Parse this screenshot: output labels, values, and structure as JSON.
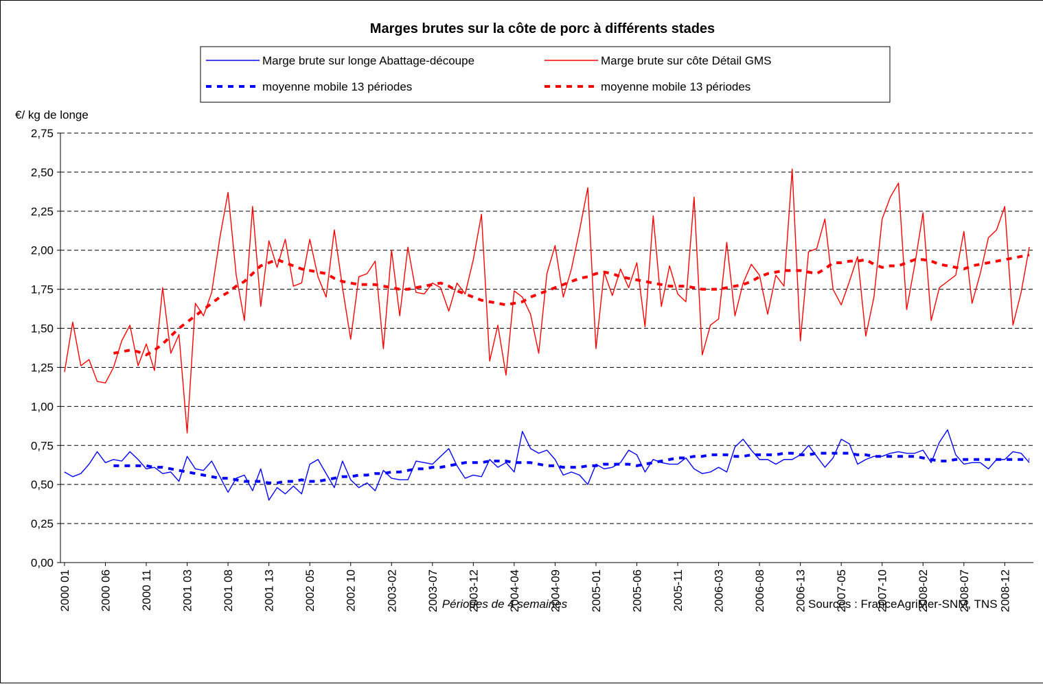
{
  "chart_data": {
    "type": "line",
    "title": "Marges brutes sur la côte de porc à différents stades",
    "y_label": "€/ kg de longe",
    "x_label": "Périodes de 4 semaines",
    "source": "Sources : FranceAgriMer-SNM, TNS",
    "grid": true,
    "ylim": [
      0,
      2.75
    ],
    "yticks": [
      {
        "value": 0,
        "label": "0,00"
      },
      {
        "value": 0.25,
        "label": "0,25"
      },
      {
        "value": 0.5,
        "label": "0,50"
      },
      {
        "value": 0.75,
        "label": "0,75"
      },
      {
        "value": 1,
        "label": "1,00"
      },
      {
        "value": 1.25,
        "label": "1,25"
      },
      {
        "value": 1.5,
        "label": "1,50"
      },
      {
        "value": 1.75,
        "label": "1,75"
      },
      {
        "value": 2,
        "label": "2,00"
      },
      {
        "value": 2.25,
        "label": "2,25"
      },
      {
        "value": 2.5,
        "label": "2,50"
      },
      {
        "value": 2.75,
        "label": "2,75"
      }
    ],
    "categories": [
      "2000 01",
      null,
      null,
      null,
      null,
      "2000 06",
      null,
      null,
      null,
      null,
      "2000 11",
      null,
      null,
      null,
      null,
      "2001 03",
      null,
      null,
      null,
      null,
      "2001 08",
      null,
      null,
      null,
      null,
      "2001 13",
      null,
      null,
      null,
      null,
      "2002 05",
      null,
      null,
      null,
      null,
      "2002 10",
      null,
      null,
      null,
      null,
      "2003-02",
      null,
      null,
      null,
      null,
      "2003-07",
      null,
      null,
      null,
      null,
      "2003-12",
      null,
      null,
      null,
      null,
      "2004-04",
      null,
      null,
      null,
      null,
      "2004-09",
      null,
      null,
      null,
      null,
      "2005-01",
      null,
      null,
      null,
      null,
      "2005-06",
      null,
      null,
      null,
      null,
      "2005-11",
      null,
      null,
      null,
      null,
      "2006-03",
      null,
      null,
      null,
      null,
      "2006-08",
      null,
      null,
      null,
      null,
      "2006-13",
      null,
      null,
      null,
      null,
      "2007-05",
      null,
      null,
      null,
      null,
      "2007-10",
      null,
      null,
      null,
      null,
      "2008-02",
      null,
      null,
      null,
      null,
      "2008-07",
      null,
      null,
      null,
      null,
      "2008-12",
      null,
      null,
      null
    ],
    "series": [
      {
        "name": "Marge brute sur longe Abattage-découpe",
        "color": "#0000ff",
        "style": "solid",
        "values": [
          0.58,
          0.55,
          0.57,
          0.63,
          0.71,
          0.64,
          0.66,
          0.65,
          0.71,
          0.66,
          0.6,
          0.61,
          0.57,
          0.58,
          0.52,
          0.68,
          0.6,
          0.59,
          0.65,
          0.55,
          0.45,
          0.54,
          0.56,
          0.46,
          0.6,
          0.4,
          0.48,
          0.44,
          0.49,
          0.44,
          0.63,
          0.66,
          0.57,
          0.48,
          0.65,
          0.53,
          0.48,
          0.51,
          0.46,
          0.59,
          0.54,
          0.53,
          0.53,
          0.65,
          0.64,
          0.63,
          0.68,
          0.73,
          0.62,
          0.54,
          0.56,
          0.55,
          0.66,
          0.61,
          0.64,
          0.58,
          0.84,
          0.73,
          0.7,
          0.72,
          0.66,
          0.56,
          0.58,
          0.56,
          0.5,
          0.63,
          0.6,
          0.61,
          0.64,
          0.72,
          0.69,
          0.58,
          0.66,
          0.64,
          0.63,
          0.63,
          0.67,
          0.6,
          0.57,
          0.58,
          0.61,
          0.58,
          0.74,
          0.79,
          0.72,
          0.66,
          0.66,
          0.63,
          0.66,
          0.66,
          0.69,
          0.75,
          0.68,
          0.61,
          0.67,
          0.79,
          0.76,
          0.63,
          0.66,
          0.68,
          0.68,
          0.7,
          0.71,
          0.7,
          0.7,
          0.72,
          0.64,
          0.77,
          0.85,
          0.69,
          0.63,
          0.64,
          0.64,
          0.6,
          0.66,
          0.66,
          0.71,
          0.7,
          0.64
        ]
      },
      {
        "name": "Marge brute sur côte Détail GMS",
        "color": "#ff0000",
        "style": "solid",
        "values": [
          1.22,
          1.54,
          1.26,
          1.3,
          1.16,
          1.15,
          1.25,
          1.42,
          1.52,
          1.26,
          1.4,
          1.23,
          1.76,
          1.34,
          1.46,
          0.83,
          1.66,
          1.58,
          1.73,
          2.08,
          2.37,
          1.84,
          1.55,
          2.28,
          1.64,
          2.06,
          1.89,
          2.07,
          1.77,
          1.79,
          2.07,
          1.83,
          1.7,
          2.13,
          1.76,
          1.43,
          1.83,
          1.85,
          1.93,
          1.37,
          2.0,
          1.58,
          2.02,
          1.73,
          1.72,
          1.79,
          1.76,
          1.61,
          1.79,
          1.72,
          1.94,
          2.23,
          1.29,
          1.52,
          1.2,
          1.74,
          1.7,
          1.59,
          1.34,
          1.85,
          2.03,
          1.7,
          1.88,
          2.13,
          2.4,
          1.37,
          1.86,
          1.71,
          1.88,
          1.76,
          1.92,
          1.51,
          2.22,
          1.64,
          1.9,
          1.72,
          1.67,
          2.34,
          1.33,
          1.52,
          1.56,
          2.05,
          1.58,
          1.79,
          1.91,
          1.84,
          1.59,
          1.84,
          1.77,
          2.52,
          1.42,
          1.99,
          2.01,
          2.2,
          1.75,
          1.65,
          1.8,
          1.96,
          1.45,
          1.7,
          2.2,
          2.34,
          2.43,
          1.62,
          1.91,
          2.24,
          1.55,
          1.76,
          1.8,
          1.84,
          2.12,
          1.66,
          1.85,
          2.08,
          2.13,
          2.28,
          1.52,
          1.73,
          2.02
        ]
      },
      {
        "name": "moyenne mobile 13 périodes",
        "color": "#0000ff",
        "style": "dashed",
        "values": [
          null,
          null,
          null,
          null,
          null,
          null,
          0.62,
          0.62,
          0.62,
          0.62,
          0.62,
          0.61,
          0.61,
          0.6,
          0.59,
          0.58,
          0.57,
          0.56,
          0.55,
          0.54,
          0.54,
          0.53,
          0.52,
          0.52,
          0.52,
          0.51,
          0.51,
          0.52,
          0.52,
          0.53,
          0.52,
          0.52,
          0.53,
          0.54,
          0.55,
          0.55,
          0.56,
          0.56,
          0.57,
          0.57,
          0.58,
          0.58,
          0.59,
          0.6,
          0.6,
          0.61,
          0.61,
          0.62,
          0.63,
          0.64,
          0.64,
          0.64,
          0.65,
          0.65,
          0.65,
          0.64,
          0.64,
          0.64,
          0.63,
          0.62,
          0.62,
          0.61,
          0.61,
          0.61,
          0.62,
          0.62,
          0.63,
          0.63,
          0.63,
          0.63,
          0.62,
          0.63,
          0.64,
          0.65,
          0.66,
          0.67,
          0.67,
          0.68,
          0.68,
          0.69,
          0.69,
          0.69,
          0.68,
          0.68,
          0.69,
          0.69,
          0.69,
          0.69,
          0.7,
          0.7,
          0.69,
          0.69,
          0.7,
          0.7,
          0.7,
          0.7,
          0.7,
          0.69,
          0.69,
          0.68,
          0.68,
          0.68,
          0.68,
          0.68,
          0.68,
          0.67,
          0.66,
          0.65,
          0.65,
          0.66,
          0.66,
          0.66,
          0.66,
          0.66,
          0.66,
          0.66,
          0.66,
          0.66,
          0.66
        ]
      },
      {
        "name": "moyenne mobile 13 périodes",
        "color": "#ff0000",
        "style": "dashed",
        "values": [
          null,
          null,
          null,
          null,
          null,
          null,
          1.34,
          1.35,
          1.36,
          1.35,
          1.33,
          1.36,
          1.4,
          1.45,
          1.5,
          1.54,
          1.58,
          1.62,
          1.66,
          1.7,
          1.73,
          1.77,
          1.8,
          1.85,
          1.9,
          1.92,
          1.94,
          1.92,
          1.9,
          1.88,
          1.87,
          1.86,
          1.85,
          1.82,
          1.8,
          1.79,
          1.78,
          1.78,
          1.78,
          1.77,
          1.76,
          1.75,
          1.75,
          1.76,
          1.77,
          1.78,
          1.79,
          1.77,
          1.74,
          1.72,
          1.7,
          1.68,
          1.67,
          1.66,
          1.65,
          1.66,
          1.67,
          1.7,
          1.72,
          1.74,
          1.76,
          1.78,
          1.8,
          1.82,
          1.83,
          1.85,
          1.86,
          1.85,
          1.83,
          1.82,
          1.81,
          1.8,
          1.79,
          1.78,
          1.77,
          1.77,
          1.77,
          1.76,
          1.75,
          1.75,
          1.75,
          1.76,
          1.77,
          1.78,
          1.8,
          1.83,
          1.85,
          1.86,
          1.87,
          1.87,
          1.87,
          1.86,
          1.85,
          1.88,
          1.92,
          1.92,
          1.93,
          1.93,
          1.94,
          1.91,
          1.89,
          1.9,
          1.9,
          1.92,
          1.94,
          1.94,
          1.93,
          1.91,
          1.9,
          1.89,
          1.88,
          1.9,
          1.91,
          1.92,
          1.93,
          1.94,
          1.95,
          1.96,
          1.97
        ]
      }
    ]
  }
}
